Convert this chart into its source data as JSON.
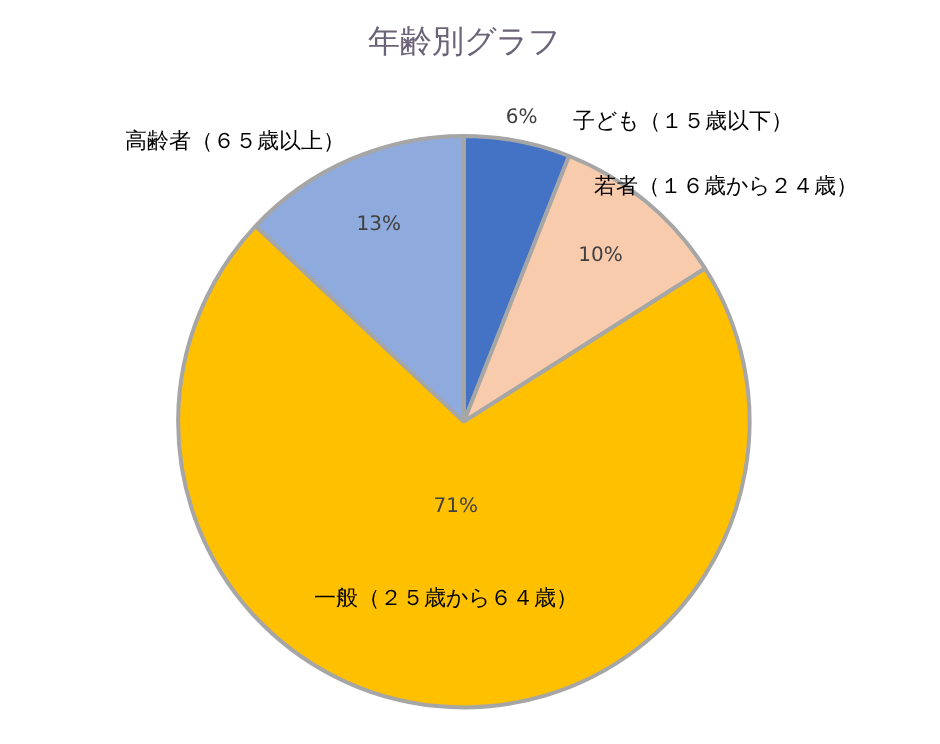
{
  "chart_data": {
    "type": "pie",
    "title": "年齢別グラフ",
    "categories": [
      "子ども（１５歳以下）",
      "若者（１６歳から２４歳）",
      "一般（２５歳から６４歳）",
      "高齢者（６５歳以上）"
    ],
    "values": [
      6,
      10,
      71,
      13
    ],
    "colors": [
      "#4472c4",
      "#f8cbad",
      "#ffc000",
      "#8faadc"
    ],
    "value_labels": [
      "6%",
      "10%",
      "71%",
      "13%"
    ]
  }
}
